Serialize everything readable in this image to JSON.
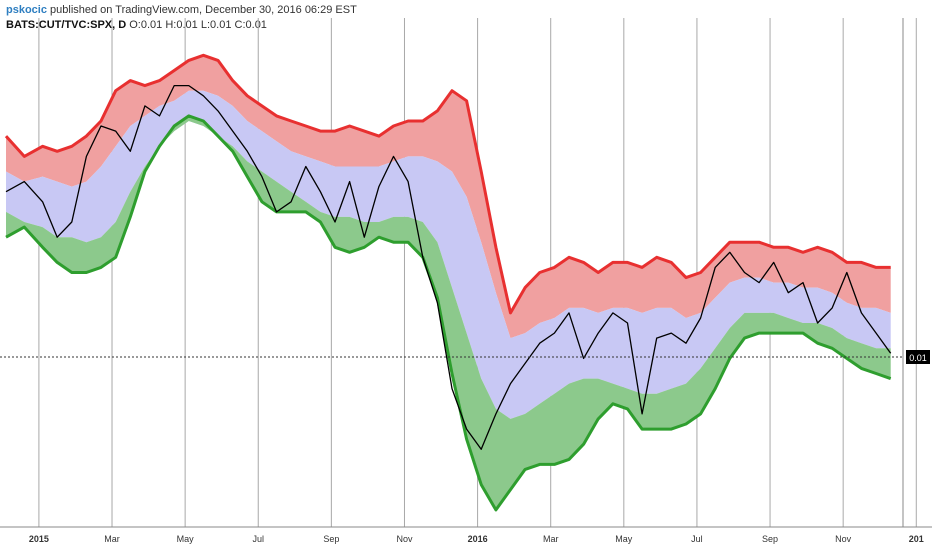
{
  "header": {
    "author": "pskocic",
    "published_text": " published on TradingView.com, December 30, 2016 06:29 EST",
    "symbol": "BATS:CUT/TVC:SPX, D",
    "open_label": "O:",
    "open_value": "0.01",
    "high_label": "H:",
    "high_value": "0.01",
    "low_label": "L:",
    "low_value": "0.01",
    "close_label": "C:",
    "close_value": "0.01",
    "last_value": "0.01"
  },
  "colors": {
    "upper_band": "#f0a0a0",
    "upper_line": "#e83030",
    "middle_band": "#c8c8f4",
    "lower_band": "#8cc98c",
    "lower_line": "#2e9e2e",
    "price_line": "#000000",
    "grid": "#a8a8a8"
  },
  "chart_data": {
    "type": "line",
    "title": "",
    "xlabel": "",
    "ylabel": "",
    "x_ticks": [
      "2015",
      "Mar",
      "May",
      "Jul",
      "Sep",
      "Nov",
      "2016",
      "Mar",
      "May",
      "Jul",
      "Sep",
      "Nov",
      "201"
    ],
    "y_tick_labels": [
      "0.01"
    ],
    "last_value_label": "0.01",
    "grid": true,
    "x_range_months": [
      0,
      24.4
    ],
    "y_range": [
      0,
      100
    ],
    "note_units": "y values are relative levels (price ratio ~0.01)",
    "series": [
      {
        "name": "",
        "role": "price",
        "x": [
          0,
          0.5,
          1.0,
          1.4,
          1.8,
          2.2,
          2.6,
          3.0,
          3.4,
          3.8,
          4.2,
          4.6,
          5.0,
          5.4,
          5.8,
          6.2,
          6.6,
          7.0,
          7.4,
          7.8,
          8.2,
          8.6,
          9.0,
          9.4,
          9.8,
          10.2,
          10.6,
          11.0,
          11.4,
          11.8,
          12.2,
          12.6,
          13.0,
          13.4,
          13.8,
          14.2,
          14.6,
          15.0,
          15.4,
          15.8,
          16.2,
          16.6,
          17.0,
          17.4,
          17.8,
          18.2,
          18.6,
          19.0,
          19.4,
          19.8,
          20.2,
          20.6,
          21.0,
          21.4,
          21.8,
          22.2,
          22.6,
          23.0,
          23.4,
          23.8,
          24.2
        ],
        "y": [
          66,
          68,
          64,
          57,
          60,
          73,
          79,
          78,
          74,
          83,
          81,
          87,
          87,
          85,
          82,
          78,
          74,
          69,
          62,
          64,
          71,
          66,
          60,
          68,
          57,
          67,
          73,
          68,
          53,
          44,
          27,
          19,
          15,
          22,
          28,
          32,
          36,
          38,
          42,
          33,
          38,
          42,
          40,
          22,
          37,
          38,
          36,
          41,
          51,
          54,
          50,
          48,
          52,
          46,
          48,
          40,
          43,
          50,
          42,
          38,
          34
        ]
      },
      {
        "name": "",
        "role": "upper_band",
        "x": [
          0,
          0.5,
          1.0,
          1.4,
          1.8,
          2.2,
          2.6,
          3.0,
          3.4,
          3.8,
          4.2,
          4.6,
          5.0,
          5.4,
          5.8,
          6.2,
          6.6,
          7.0,
          7.4,
          7.8,
          8.2,
          8.6,
          9.0,
          9.4,
          9.8,
          10.2,
          10.6,
          11.0,
          11.4,
          11.8,
          12.2,
          12.6,
          13.0,
          13.4,
          13.8,
          14.2,
          14.6,
          15.0,
          15.4,
          15.8,
          16.2,
          16.6,
          17.0,
          17.4,
          17.8,
          18.2,
          18.6,
          19.0,
          19.4,
          19.8,
          20.2,
          20.6,
          21.0,
          21.4,
          21.8,
          22.2,
          22.6,
          23.0,
          23.4,
          23.8,
          24.2
        ],
        "y": [
          77,
          73,
          75,
          74,
          75,
          77,
          80,
          86,
          88,
          87,
          88,
          90,
          92,
          93,
          92,
          88,
          85,
          83,
          81,
          80,
          79,
          78,
          78,
          79,
          78,
          77,
          79,
          80,
          80,
          82,
          86,
          84,
          70,
          55,
          42,
          47,
          50,
          51,
          53,
          52,
          50,
          52,
          52,
          51,
          53,
          52,
          49,
          50,
          53,
          56,
          56,
          56,
          55,
          55,
          54,
          55,
          54,
          52,
          52,
          51,
          51
        ]
      },
      {
        "name": "",
        "role": "middle_upper",
        "x": [
          0,
          0.5,
          1.0,
          1.4,
          1.8,
          2.2,
          2.6,
          3.0,
          3.4,
          3.8,
          4.2,
          4.6,
          5.0,
          5.4,
          5.8,
          6.2,
          6.6,
          7.0,
          7.4,
          7.8,
          8.2,
          8.6,
          9.0,
          9.4,
          9.8,
          10.2,
          10.6,
          11.0,
          11.4,
          11.8,
          12.2,
          12.6,
          13.0,
          13.4,
          13.8,
          14.2,
          14.6,
          15.0,
          15.4,
          15.8,
          16.2,
          16.6,
          17.0,
          17.4,
          17.8,
          18.2,
          18.6,
          19.0,
          19.4,
          19.8,
          20.2,
          20.6,
          21.0,
          21.4,
          21.8,
          22.2,
          22.6,
          23.0,
          23.4,
          23.8,
          24.2
        ],
        "y": [
          70,
          68,
          69,
          68,
          67,
          68,
          71,
          75,
          79,
          81,
          83,
          84,
          86,
          86,
          85,
          83,
          80,
          78,
          76,
          74,
          73,
          72,
          71,
          71,
          71,
          71,
          72,
          73,
          73,
          72,
          70,
          65,
          56,
          46,
          37,
          38,
          40,
          41,
          43,
          43,
          42,
          43,
          43,
          42,
          43,
          43,
          41,
          42,
          45,
          48,
          49,
          49,
          48,
          48,
          47,
          47,
          46,
          44,
          43,
          43,
          42
        ]
      },
      {
        "name": "",
        "role": "middle_lower",
        "x": [
          0,
          0.5,
          1.0,
          1.4,
          1.8,
          2.2,
          2.6,
          3.0,
          3.4,
          3.8,
          4.2,
          4.6,
          5.0,
          5.4,
          5.8,
          6.2,
          6.6,
          7.0,
          7.4,
          7.8,
          8.2,
          8.6,
          9.0,
          9.4,
          9.8,
          10.2,
          10.6,
          11.0,
          11.4,
          11.8,
          12.2,
          12.6,
          13.0,
          13.4,
          13.8,
          14.2,
          14.6,
          15.0,
          15.4,
          15.8,
          16.2,
          16.6,
          17.0,
          17.4,
          17.8,
          18.2,
          18.6,
          19.0,
          19.4,
          19.8,
          20.2,
          20.6,
          21.0,
          21.4,
          21.8,
          22.2,
          22.6,
          23.0,
          23.4,
          23.8,
          24.2
        ],
        "y": [
          62,
          60,
          59,
          57,
          57,
          56,
          57,
          60,
          66,
          71,
          75,
          78,
          80,
          79,
          77,
          75,
          72,
          70,
          68,
          66,
          64,
          62,
          61,
          61,
          60,
          60,
          61,
          61,
          60,
          56,
          47,
          38,
          29,
          23,
          21,
          22,
          24,
          26,
          28,
          29,
          29,
          28,
          27,
          26,
          26,
          27,
          28,
          31,
          35,
          39,
          42,
          42,
          42,
          41,
          40,
          40,
          39,
          37,
          36,
          35,
          35
        ]
      },
      {
        "name": "",
        "role": "lower_band",
        "x": [
          0,
          0.5,
          1.0,
          1.4,
          1.8,
          2.2,
          2.6,
          3.0,
          3.4,
          3.8,
          4.2,
          4.6,
          5.0,
          5.4,
          5.8,
          6.2,
          6.6,
          7.0,
          7.4,
          7.8,
          8.2,
          8.6,
          9.0,
          9.4,
          9.8,
          10.2,
          10.6,
          11.0,
          11.4,
          11.8,
          12.2,
          12.6,
          13.0,
          13.4,
          13.8,
          14.2,
          14.6,
          15.0,
          15.4,
          15.8,
          16.2,
          16.6,
          17.0,
          17.4,
          17.8,
          18.2,
          18.6,
          19.0,
          19.4,
          19.8,
          20.2,
          20.6,
          21.0,
          21.4,
          21.8,
          22.2,
          22.6,
          23.0,
          23.4,
          23.8,
          24.2
        ],
        "y": [
          57,
          59,
          55,
          52,
          50,
          50,
          51,
          53,
          61,
          70,
          75,
          79,
          81,
          80,
          77,
          74,
          69,
          64,
          62,
          62,
          62,
          60,
          55,
          54,
          55,
          57,
          56,
          56,
          53,
          45,
          30,
          17,
          8,
          3,
          7,
          11,
          12,
          12,
          13,
          16,
          21,
          24,
          23,
          19,
          19,
          19,
          20,
          22,
          27,
          33,
          37,
          38,
          38,
          38,
          38,
          36,
          35,
          33,
          31,
          30,
          29
        ]
      }
    ]
  }
}
